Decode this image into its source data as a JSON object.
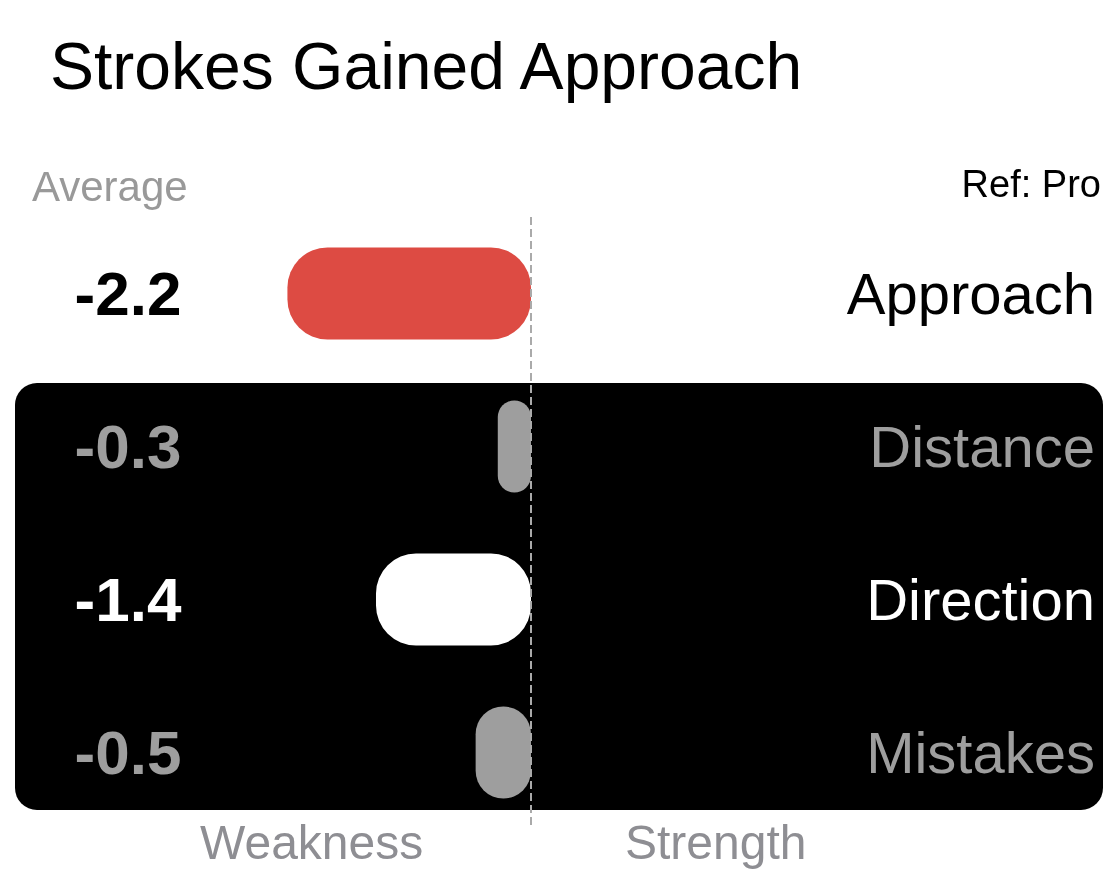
{
  "chart_data": {
    "type": "bar",
    "orientation": "horizontal",
    "title": "Strokes Gained Approach",
    "categories": [
      "Approach",
      "Distance",
      "Direction",
      "Mistakes"
    ],
    "values": [
      -2.2,
      -0.3,
      -1.4,
      -0.5
    ],
    "colors": [
      "#dd4b43",
      "#9e9e9e",
      "#ffffff",
      "#9e9e9e"
    ],
    "data_labels": true,
    "ref_lines": [
      {
        "axis": "x",
        "value": 0,
        "color": "#aaaaaa",
        "line_style": "dashed"
      }
    ],
    "annotations": [
      "Average",
      "Ref: Pro",
      "Weakness",
      "Strength"
    ],
    "grid": false
  }
}
